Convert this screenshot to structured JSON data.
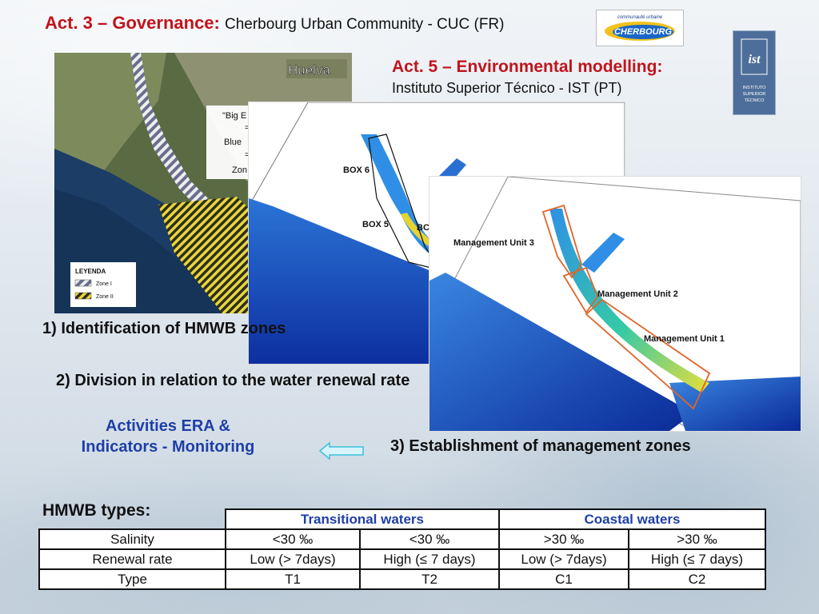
{
  "header": {
    "act3_title": "Act. 3 – Governance:",
    "act3_subtitle": "Cherbourg Urban Community - CUC (FR)",
    "act5_title": "Act. 5 – Environmental modelling:",
    "act5_subtitle": "Instituto Superior Técnico - IST (PT)"
  },
  "logos": {
    "cuc_top": "communauté urbaine",
    "cuc_main": "CHERBOURG",
    "ist_mark": "ist",
    "ist_line1": "INSTITUTO",
    "ist_line2": "SUPERIOR",
    "ist_line3": "TÉCNICO"
  },
  "maps": {
    "huelva_place": "Huelva",
    "huelva_box_line1": "\"Big E",
    "huelva_box_line2": "=",
    "huelva_box_line3": "Blue",
    "huelva_box_line4": "=",
    "huelva_box_line5": "Zon",
    "legend_title": "LEYENDA",
    "legend_zone1": "Zone I",
    "legend_zone2": "Zone II",
    "box6": "BOX 6",
    "box5": "BOX 5",
    "box4_partial": "BC",
    "mu3": "Management Unit 3",
    "mu2": "Management Unit 2",
    "mu1": "Management Unit 1"
  },
  "steps": {
    "s1": "1) Identification of HMWB zones",
    "s2": "2) Division in relation to the water renewal rate",
    "s3": "3) Establishment of management zones"
  },
  "era": {
    "line1": "Activities ERA &",
    "line2": "Indicators - Monitoring"
  },
  "hmwb": {
    "title": "HMWB types:",
    "group_headers": [
      "Transitional waters",
      "Coastal waters"
    ],
    "rows": [
      {
        "label": "Salinity",
        "cells": [
          "<30 ‰",
          "<30 ‰",
          ">30 ‰",
          ">30 ‰"
        ]
      },
      {
        "label": "Renewal rate",
        "cells": [
          "Low (> 7days)",
          "High (≤ 7 days)",
          "Low (> 7days)",
          "High (≤ 7 days)"
        ]
      },
      {
        "label": "Type",
        "cells": [
          "T1",
          "T2",
          "C1",
          "C2"
        ]
      }
    ]
  },
  "colors": {
    "title_red": "#c0141c",
    "era_blue": "#1f3fa8",
    "header_blue": "#1f3fa8",
    "arrow_fill": "#d8f4fb",
    "arrow_stroke": "#3cc0dc",
    "management_outline": "#e0642a"
  }
}
